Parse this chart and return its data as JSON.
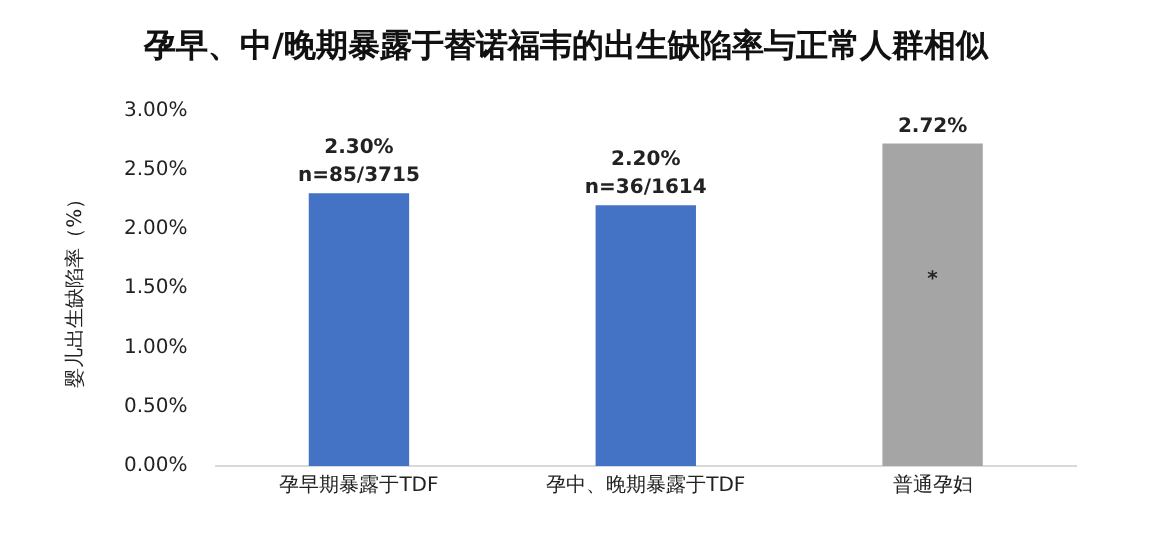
{
  "chart_data": {
    "type": "bar",
    "title": "孕早、中/晚期暴露于替诺福韦的出生缺陷率与正常人群相似",
    "ylabel": "婴儿出生缺陷率（%）",
    "categories": [
      "孕早期暴露于TDF",
      "孕中、晚期暴露于TDF",
      "普通孕妇"
    ],
    "values": [
      2.3,
      2.2,
      2.72
    ],
    "colors": [
      "#4472c4",
      "#4472c4",
      "#a5a5a5"
    ],
    "value_labels": [
      "2.30%\nn=85/3715",
      "2.20%\nn=36/1614",
      "2.72%"
    ],
    "annotations": [
      "*"
    ],
    "ylim": [
      0,
      3
    ],
    "yticks": [
      {
        "value": 0,
        "label": "0.00%"
      },
      {
        "value": 0.5,
        "label": "0.50%"
      },
      {
        "value": 1,
        "label": "1.00%"
      },
      {
        "value": 1.5,
        "label": "1.50%"
      },
      {
        "value": 2,
        "label": "2.00%"
      },
      {
        "value": 2.5,
        "label": "2.50%"
      },
      {
        "value": 3,
        "label": "3.00%"
      }
    ],
    "grid": false,
    "legend": false
  }
}
